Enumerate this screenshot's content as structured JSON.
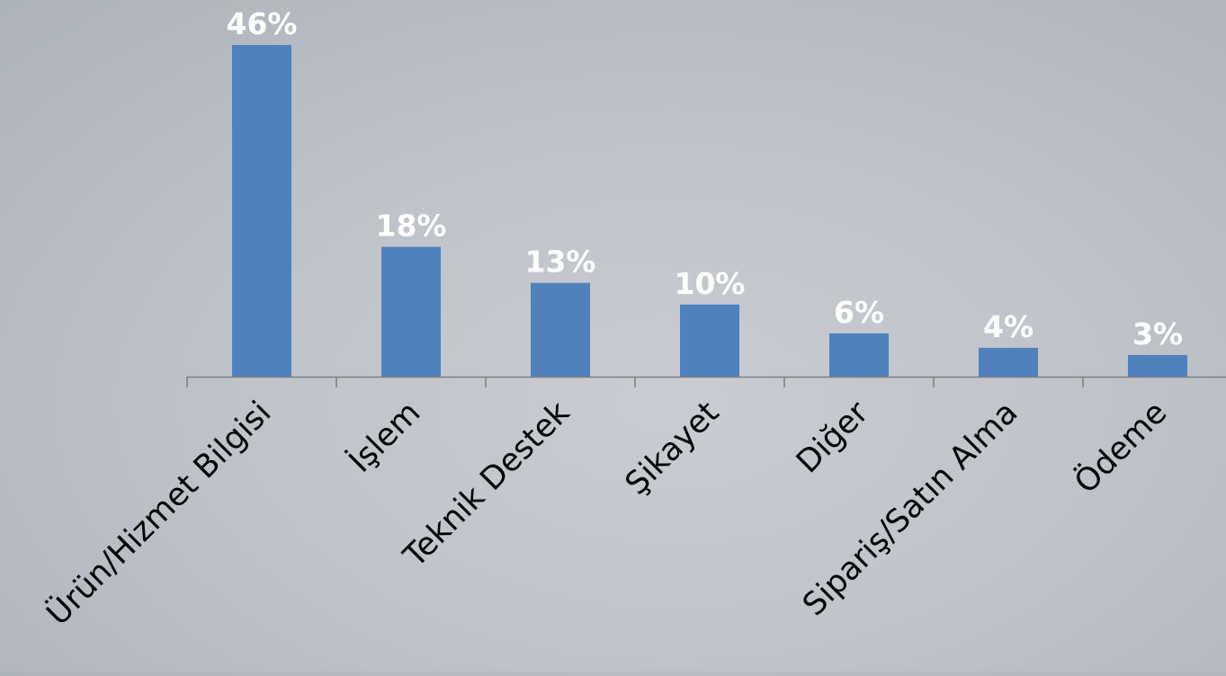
{
  "chart_data": {
    "type": "bar",
    "categories": [
      "Ürün/Hizmet Bilgisi",
      "İşlem",
      "Teknik Destek",
      "Şikayet",
      "Diğer",
      "Sipariş/Satın Alma",
      "Ödeme"
    ],
    "values": [
      46,
      18,
      13,
      10,
      6,
      4,
      3
    ],
    "data_labels": [
      "46%",
      "18%",
      "13%",
      "10%",
      "6%",
      "4%",
      "3%"
    ],
    "title": "",
    "xlabel": "",
    "ylabel": "",
    "ylim": [
      0,
      46
    ],
    "grid": false,
    "legend": "none",
    "colors": {
      "bar": "#4f81bd",
      "data_label": "#ffffff",
      "category_label": "#000000",
      "axis": "#7f7f7f"
    }
  }
}
